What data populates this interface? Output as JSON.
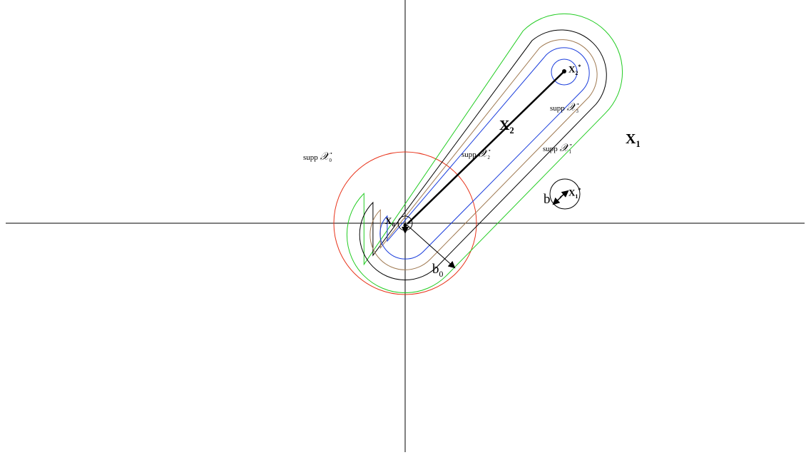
{
  "labels": {
    "supp_x0": {
      "prefix": "supp ",
      "symbol": "𝒳",
      "sub": "0"
    },
    "supp_x1": {
      "prefix": "supp ",
      "symbol": "𝒳",
      "sub": "1"
    },
    "supp_x2": {
      "prefix": "supp ",
      "symbol": "𝒳",
      "sub": "2"
    },
    "supp_x3": {
      "prefix": "supp ",
      "symbol": "𝒳",
      "sub": "3"
    },
    "X0": {
      "base": "X",
      "sub": "0"
    },
    "X1": {
      "base": "X",
      "sub": "1"
    },
    "X2": {
      "base": "X",
      "sub": "2"
    },
    "X1_star": {
      "base": "X",
      "sub": "1",
      "sup": "*"
    },
    "X2_star": {
      "base": "X",
      "sub": "2",
      "sup": "*"
    },
    "b0": {
      "base": "b",
      "sub": "0"
    },
    "b": {
      "base": "b"
    }
  },
  "colors": {
    "axes": "#000000",
    "segment": "#000000",
    "supp_x0": "#e8331a",
    "supp_x1": "#000000",
    "supp_x2": "#1a3ddc",
    "supp_x3": "#a07a52",
    "outer": "#22cc22"
  }
}
